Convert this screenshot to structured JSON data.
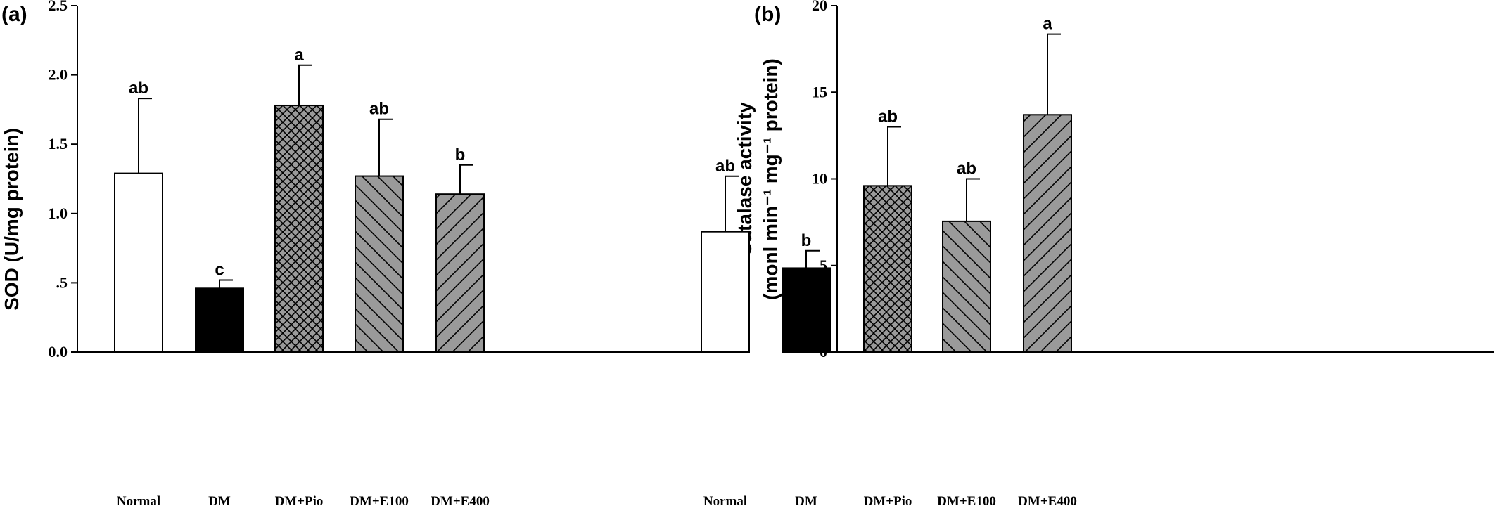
{
  "colors": {
    "normal": "#ffffff",
    "dm": "#000000",
    "treated": "#9a9a9a",
    "stroke": "#000000"
  },
  "chart_data": [
    {
      "type": "bar",
      "panel_label": "(a)",
      "ylabel": "SOD (U/mg protein)",
      "ylim": [
        0,
        2.5
      ],
      "yticks": [
        0,
        0.5,
        1.0,
        1.5,
        2.0,
        2.5
      ],
      "ytick_labels": [
        "0.0",
        ".5",
        "1.0",
        "1.5",
        "2.0",
        "2.5"
      ],
      "categories": [
        "Normal",
        "DM",
        "DM+Pio",
        "DM+E100",
        "DM+E400"
      ],
      "values": [
        1.29,
        0.46,
        1.78,
        1.27,
        1.14
      ],
      "errors": [
        0.54,
        0.06,
        0.29,
        0.41,
        0.21
      ],
      "significance": [
        "ab",
        "c",
        "a",
        "ab",
        "b"
      ],
      "patterns": [
        "white",
        "black",
        "crosshatch",
        "backslash",
        "slash"
      ]
    },
    {
      "type": "bar",
      "panel_label": "(b)",
      "ylabel_line1": "Catalase activity",
      "ylabel_line2": "(monl min⁻¹ mg⁻¹ protein)",
      "ylim": [
        0,
        20
      ],
      "yticks": [
        0,
        5,
        10,
        15,
        20
      ],
      "ytick_labels": [
        "0",
        "5",
        "10",
        "15",
        "20"
      ],
      "categories": [
        "Normal",
        "DM",
        "DM+Pio",
        "DM+E100",
        "DM+E400"
      ],
      "values": [
        6.95,
        4.85,
        9.6,
        7.55,
        13.7
      ],
      "errors": [
        3.2,
        1.0,
        3.4,
        2.45,
        4.65
      ],
      "significance": [
        "ab",
        "b",
        "ab",
        "ab",
        "a"
      ],
      "patterns": [
        "white",
        "black",
        "crosshatch",
        "backslash",
        "slash"
      ]
    }
  ]
}
